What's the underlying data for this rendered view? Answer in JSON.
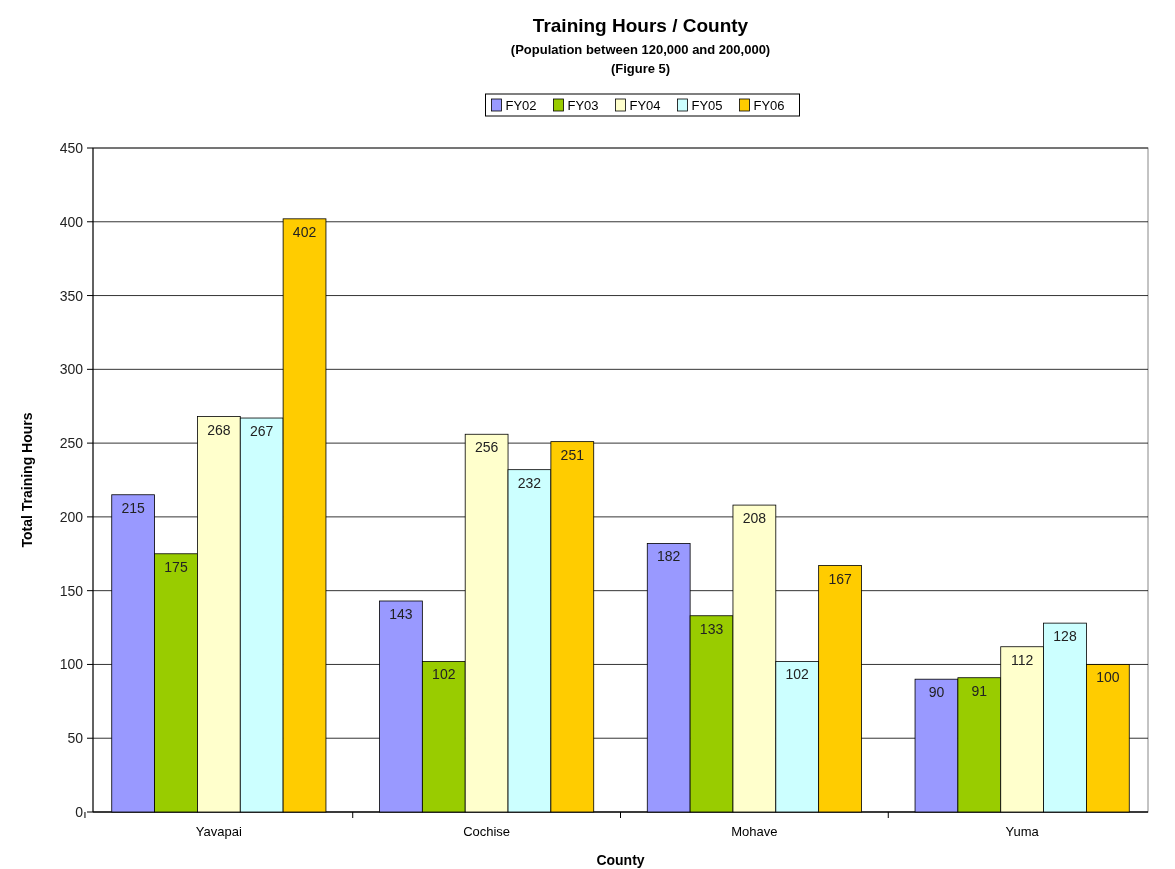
{
  "chart_data": {
    "type": "bar",
    "title": "Training Hours / County",
    "subtitle": "(Population between 120,000 and 200,000)\n(Figure 5)",
    "xlabel": "County",
    "ylabel": "Total Training Hours",
    "categories": [
      "Yavapai",
      "Cochise",
      "Mohave",
      "Yuma"
    ],
    "series": [
      {
        "name": "FY02",
        "color": "#9999ff",
        "values": [
          215,
          143,
          182,
          90
        ]
      },
      {
        "name": "FY03",
        "color": "#99cc00",
        "values": [
          175,
          102,
          133,
          91
        ]
      },
      {
        "name": "FY04",
        "color": "#ffffcc",
        "values": [
          268,
          256,
          208,
          112
        ]
      },
      {
        "name": "FY05",
        "color": "#ccffff",
        "values": [
          267,
          232,
          102,
          128
        ]
      },
      {
        "name": "FY06",
        "color": "#ffcc00",
        "values": [
          402,
          251,
          167,
          100
        ]
      }
    ],
    "ylim": [
      0,
      450
    ],
    "yticks": [
      0,
      50,
      100,
      150,
      200,
      250,
      300,
      350,
      400,
      450
    ],
    "grid": "y",
    "legend": "top",
    "data_labels": true
  }
}
